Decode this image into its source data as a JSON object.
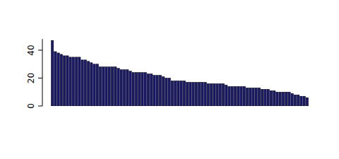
{
  "chart_data": {
    "type": "bar",
    "categories": [
      null,
      null,
      null,
      null,
      null,
      null,
      null,
      null,
      null,
      null,
      null,
      null,
      null,
      null,
      null,
      null,
      null,
      null,
      null,
      null,
      null,
      null,
      null,
      null,
      null,
      null,
      null,
      null,
      null,
      null,
      null,
      null,
      null,
      null,
      null,
      null,
      null,
      null,
      null,
      null,
      null,
      null,
      null,
      null,
      null,
      null,
      null,
      null,
      null,
      null,
      null,
      null,
      null,
      null,
      null,
      null,
      null,
      null,
      null,
      null,
      null,
      null,
      null,
      null,
      null,
      null,
      null,
      null,
      null,
      null,
      null,
      null,
      null,
      null,
      null,
      null,
      null,
      null,
      null,
      null,
      null,
      null,
      null,
      null,
      null,
      null
    ],
    "values": [
      47,
      39,
      38,
      37,
      36,
      36,
      35,
      35,
      35,
      35,
      33,
      33,
      32,
      31,
      30,
      30,
      28,
      28,
      28,
      28,
      28,
      28,
      27,
      26,
      26,
      26,
      25,
      24,
      24,
      24,
      24,
      24,
      23,
      23,
      22,
      22,
      22,
      21,
      20,
      20,
      18,
      18,
      18,
      18,
      18,
      17,
      17,
      17,
      17,
      17,
      17,
      17,
      16,
      16,
      16,
      16,
      16,
      16,
      15,
      14,
      14,
      14,
      14,
      14,
      14,
      13,
      13,
      13,
      13,
      13,
      12,
      12,
      12,
      11,
      11,
      10,
      10,
      10,
      10,
      10,
      9,
      8,
      8,
      7,
      7,
      6
    ],
    "color": "#191970",
    "ylim": [
      0,
      48
    ],
    "yticks": [
      0,
      20,
      40
    ],
    "tick_labels": "y"
  }
}
